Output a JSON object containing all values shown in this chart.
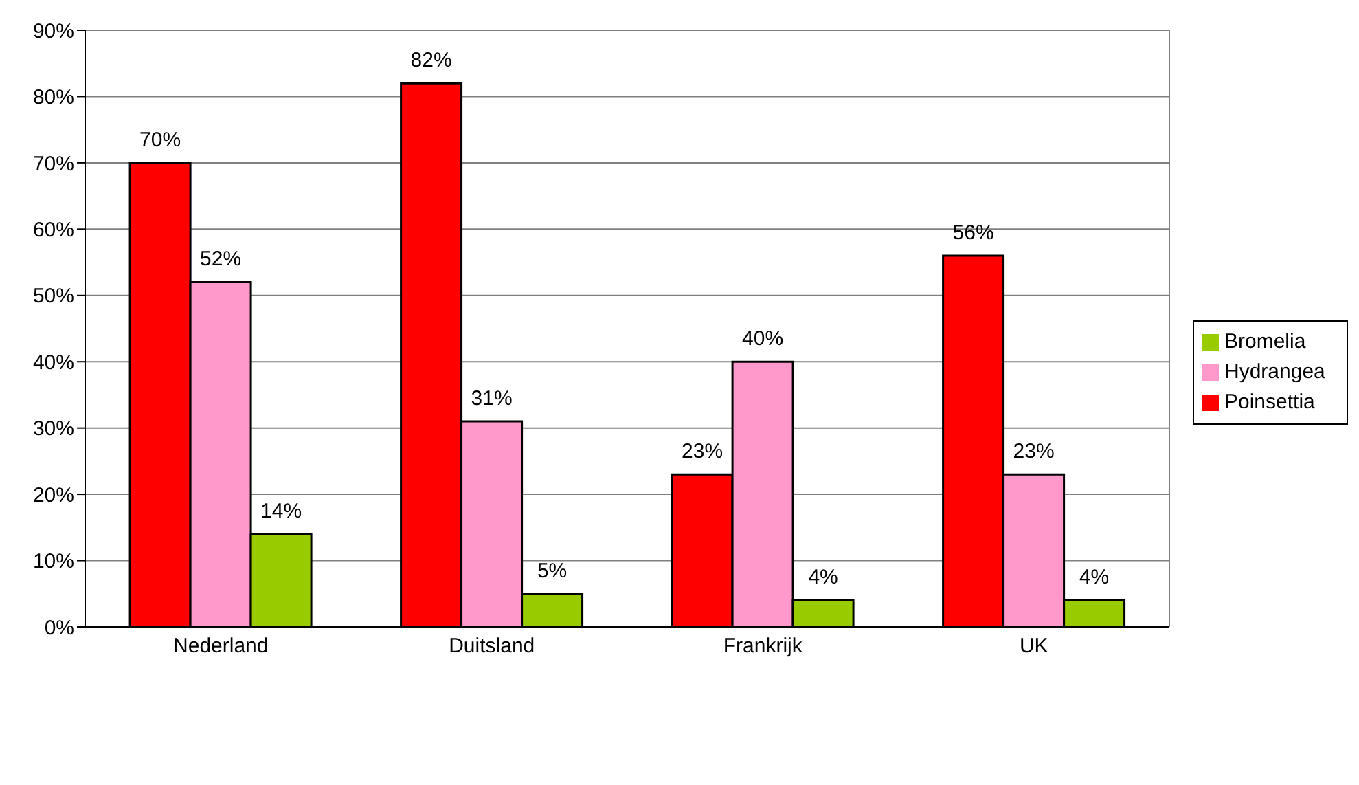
{
  "chart_data": {
    "type": "bar",
    "categories": [
      "Nederland",
      "Duitsland",
      "Frankrijk",
      "UK"
    ],
    "series": [
      {
        "name": "Poinsettia",
        "color": "#ff0000",
        "values": [
          70,
          82,
          23,
          56
        ],
        "value_labels": [
          "70%",
          "82%",
          "23%",
          "56%"
        ]
      },
      {
        "name": "Hydrangea",
        "color": "#ff99cc",
        "values": [
          52,
          31,
          40,
          23
        ],
        "value_labels": [
          "52%",
          "31%",
          "40%",
          "23%"
        ]
      },
      {
        "name": "Bromelia",
        "color": "#99cc00",
        "values": [
          14,
          5,
          4,
          4
        ],
        "value_labels": [
          "14%",
          "5%",
          "4%",
          "4%"
        ]
      }
    ],
    "ylim": [
      0,
      90
    ],
    "yticks": [
      {
        "value": 0,
        "label": "0%"
      },
      {
        "value": 10,
        "label": "10%"
      },
      {
        "value": 20,
        "label": "20%"
      },
      {
        "value": 30,
        "label": "30%"
      },
      {
        "value": 40,
        "label": "40%"
      },
      {
        "value": 50,
        "label": "50%"
      },
      {
        "value": 60,
        "label": "60%"
      },
      {
        "value": 70,
        "label": "70%"
      },
      {
        "value": 80,
        "label": "80%"
      },
      {
        "value": 90,
        "label": "90%"
      }
    ],
    "grid": "y",
    "legend": "right"
  }
}
